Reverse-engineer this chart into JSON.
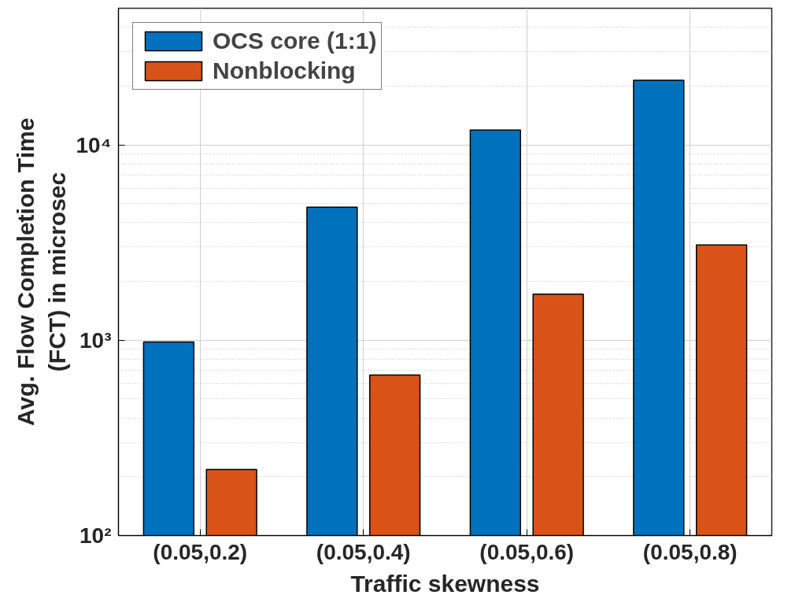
{
  "chart_data": {
    "type": "bar",
    "xlabel": "Traffic skewness",
    "ylabel": "Avg. Flow Completion Time\n(FCT) in microsec",
    "categories": [
      "(0.05,0.2)",
      "(0.05,0.4)",
      "(0.05,0.6)",
      "(0.05,0.8)"
    ],
    "series": [
      {
        "name": "OCS core (1:1)",
        "color": "#0072bd",
        "values": [
          980,
          4800,
          11900,
          21400
        ]
      },
      {
        "name": "Nonblocking",
        "color": "#d95319",
        "values": [
          218,
          664,
          1720,
          3070
        ]
      }
    ],
    "log": "y",
    "ylim": [
      100,
      50000
    ],
    "yticks": [
      {
        "value": 100,
        "label": "10²"
      },
      {
        "value": 1000,
        "label": "10³"
      },
      {
        "value": 10000,
        "label": "10⁴"
      }
    ],
    "grid": true,
    "legend": "top left"
  }
}
